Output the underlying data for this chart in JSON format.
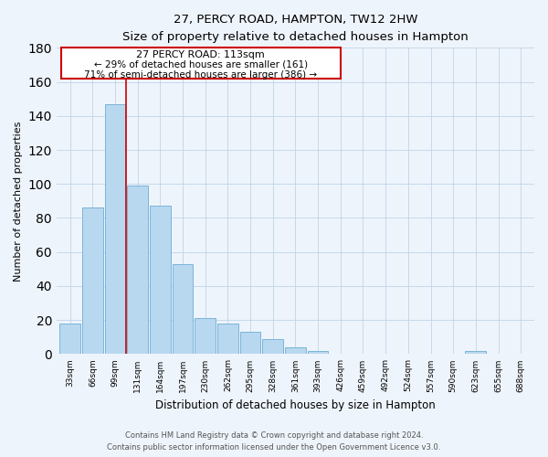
{
  "title": "27, PERCY ROAD, HAMPTON, TW12 2HW",
  "subtitle": "Size of property relative to detached houses in Hampton",
  "xlabel": "Distribution of detached houses by size in Hampton",
  "ylabel": "Number of detached properties",
  "bin_labels": [
    "33sqm",
    "66sqm",
    "99sqm",
    "131sqm",
    "164sqm",
    "197sqm",
    "230sqm",
    "262sqm",
    "295sqm",
    "328sqm",
    "361sqm",
    "393sqm",
    "426sqm",
    "459sqm",
    "492sqm",
    "524sqm",
    "557sqm",
    "590sqm",
    "623sqm",
    "655sqm",
    "688sqm"
  ],
  "bar_heights": [
    18,
    86,
    147,
    99,
    87,
    53,
    21,
    18,
    13,
    9,
    4,
    2,
    0,
    0,
    0,
    0,
    0,
    0,
    2,
    0,
    0
  ],
  "bar_color": "#b8d8f0",
  "bar_edge_color": "#7ab4d8",
  "highlight_line_color": "#cc0000",
  "annotation_title": "27 PERCY ROAD: 113sqm",
  "annotation_line1": "← 29% of detached houses are smaller (161)",
  "annotation_line2": "71% of semi-detached houses are larger (386) →",
  "annotation_box_color": "#ffffff",
  "annotation_box_edge": "#cc0000",
  "ylim": [
    0,
    180
  ],
  "yticks": [
    0,
    20,
    40,
    60,
    80,
    100,
    120,
    140,
    160,
    180
  ],
  "footer_line1": "Contains HM Land Registry data © Crown copyright and database right 2024.",
  "footer_line2": "Contains public sector information licensed under the Open Government Licence v3.0.",
  "bg_color": "#eef4fb"
}
